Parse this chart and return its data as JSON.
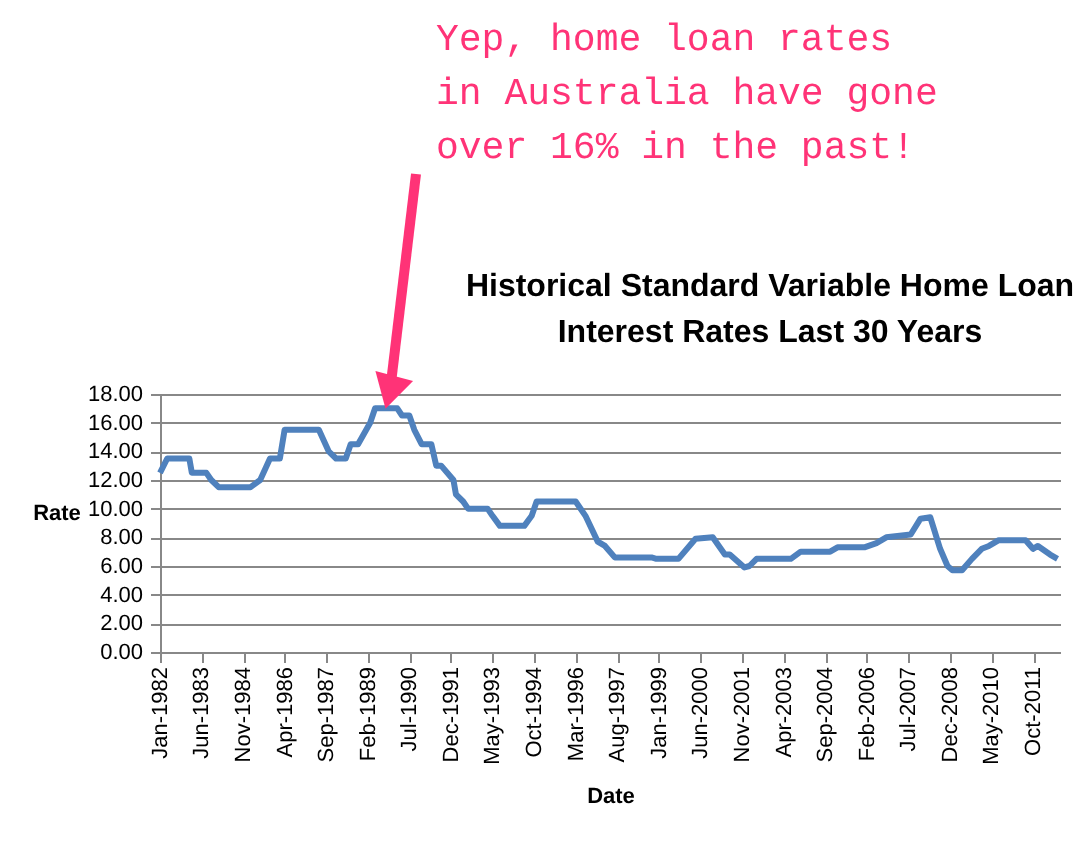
{
  "chart_data": {
    "type": "line",
    "title": "Historical Standard Variable Home Loan Interest Rates Last 30 Years",
    "xlabel": "Date",
    "ylabel": "Rate",
    "annotations": [
      {
        "text": "Yep, home loan rates in Australia have gone over 16% in the past!",
        "x": "1989-11",
        "y": 17
      }
    ],
    "x": [
      "1982-01",
      "1982-04",
      "1983-01",
      "1983-02",
      "1983-08",
      "1983-10",
      "1984-01",
      "1985-02",
      "1985-06",
      "1985-10",
      "1986-02",
      "1986-04",
      "1987-06",
      "1987-10",
      "1988-01",
      "1988-05",
      "1988-07",
      "1988-10",
      "1989-03",
      "1989-05",
      "1990-02",
      "1990-04",
      "1990-07",
      "1990-09",
      "1990-12",
      "1991-04",
      "1991-06",
      "1991-08",
      "1992-01",
      "1992-02",
      "1992-05",
      "1992-07",
      "1993-03",
      "1993-05",
      "1993-08",
      "1994-06",
      "1994-09",
      "1994-11",
      "1996-03",
      "1996-07",
      "1996-12",
      "1997-03",
      "1997-07",
      "1998-10",
      "1998-12",
      "1999-09",
      "2000-04",
      "2000-11",
      "2001-04",
      "2001-06",
      "2001-12",
      "2002-02",
      "2002-05",
      "2003-07",
      "2003-11",
      "2004-11",
      "2005-02",
      "2006-01",
      "2006-06",
      "2006-10",
      "2007-08",
      "2007-12",
      "2008-04",
      "2008-08",
      "2008-11",
      "2009-01",
      "2009-05",
      "2009-09",
      "2010-01",
      "2010-04",
      "2010-08",
      "2011-07",
      "2011-10",
      "2011-12",
      "2012-05",
      "2012-08"
    ],
    "series": [
      {
        "color": "#4f81bd",
        "values": [
          12.5,
          13.5,
          13.5,
          12.5,
          12.5,
          12.0,
          11.5,
          11.5,
          12.0,
          13.5,
          13.5,
          15.5,
          15.5,
          14.0,
          13.5,
          13.5,
          14.5,
          14.5,
          16.0,
          17.0,
          17.0,
          16.5,
          16.5,
          15.5,
          14.5,
          14.5,
          13.0,
          13.0,
          12.0,
          11.0,
          10.5,
          10.0,
          10.0,
          9.5,
          8.8,
          8.8,
          9.5,
          10.5,
          10.5,
          9.5,
          7.7,
          7.4,
          6.6,
          6.6,
          6.5,
          6.5,
          7.9,
          8.0,
          6.8,
          6.8,
          5.9,
          6.0,
          6.5,
          6.5,
          7.0,
          7.0,
          7.3,
          7.3,
          7.6,
          8.0,
          8.2,
          9.3,
          9.4,
          7.2,
          6.0,
          5.7,
          5.7,
          6.5,
          7.2,
          7.4,
          7.8,
          7.8,
          7.2,
          7.4,
          6.8,
          6.5
        ]
      }
    ],
    "xlim": [
      "1982-01",
      "2012-09"
    ],
    "xticks": [
      {
        "value": "1982-01",
        "label": "Jan-1982"
      },
      {
        "value": "1983-06",
        "label": "Jun-1983"
      },
      {
        "value": "1984-11",
        "label": "Nov-1984"
      },
      {
        "value": "1986-04",
        "label": "Apr-1986"
      },
      {
        "value": "1987-09",
        "label": "Sep-1987"
      },
      {
        "value": "1989-02",
        "label": "Feb-1989"
      },
      {
        "value": "1990-07",
        "label": "Jul-1990"
      },
      {
        "value": "1991-12",
        "label": "Dec-1991"
      },
      {
        "value": "1993-05",
        "label": "May-1993"
      },
      {
        "value": "1994-10",
        "label": "Oct-1994"
      },
      {
        "value": "1996-03",
        "label": "Mar-1996"
      },
      {
        "value": "1997-08",
        "label": "Aug-1997"
      },
      {
        "value": "1999-01",
        "label": "Jan-1999"
      },
      {
        "value": "2000-06",
        "label": "Jun-2000"
      },
      {
        "value": "2001-11",
        "label": "Nov-2001"
      },
      {
        "value": "2003-04",
        "label": "Apr-2003"
      },
      {
        "value": "2004-09",
        "label": "Sep-2004"
      },
      {
        "value": "2006-02",
        "label": "Feb-2006"
      },
      {
        "value": "2007-07",
        "label": "Jul-2007"
      },
      {
        "value": "2008-12",
        "label": "Dec-2008"
      },
      {
        "value": "2010-05",
        "label": "May-2010"
      },
      {
        "value": "2011-10",
        "label": "Oct-2011"
      }
    ],
    "ylim": [
      0,
      18
    ],
    "yticks": [
      {
        "value": 0,
        "label": "0.00"
      },
      {
        "value": 2,
        "label": "2.00"
      },
      {
        "value": 4,
        "label": "4.00"
      },
      {
        "value": 6,
        "label": "6.00"
      },
      {
        "value": 8,
        "label": "8.00"
      },
      {
        "value": 10,
        "label": "10.00"
      },
      {
        "value": 12,
        "label": "12.00"
      },
      {
        "value": 14,
        "label": "14.00"
      },
      {
        "value": 16,
        "label": "16.00"
      },
      {
        "value": 18,
        "label": "18.00"
      }
    ],
    "grid": "y",
    "marker": "none",
    "line_style": "solid"
  }
}
